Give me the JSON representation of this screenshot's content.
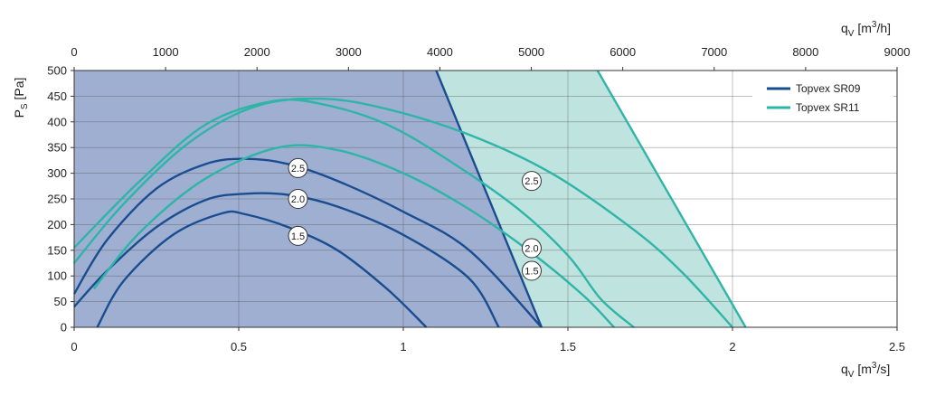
{
  "chart_data": {
    "type": "line",
    "x_bottom": {
      "label_main": "q",
      "label_sub": "V",
      "label_unit_a": " [m",
      "label_sup": "3",
      "label_unit_b": "/s]",
      "min": 0,
      "max": 2.5,
      "ticks": [
        0,
        0.5,
        1,
        1.5,
        2,
        2.5
      ],
      "tick_labels": [
        "0",
        "0.5",
        "1",
        "1.5",
        "2",
        "2.5"
      ]
    },
    "x_top": {
      "label_main": "q",
      "label_sub": "V",
      "label_unit_a": " [m",
      "label_sup": "3",
      "label_unit_b": "/h]",
      "min": 0,
      "max": 9000,
      "ticks": [
        0,
        1000,
        2000,
        3000,
        4000,
        5000,
        6000,
        7000,
        8000,
        9000
      ],
      "tick_labels": [
        "0",
        "1000",
        "2000",
        "3000",
        "4000",
        "5000",
        "6000",
        "7000",
        "8000",
        "9000"
      ]
    },
    "y": {
      "label_main": "P",
      "label_sub": "S",
      "label_unit": " [Pa]",
      "min": 0,
      "max": 500,
      "ticks": [
        0,
        50,
        100,
        150,
        200,
        250,
        300,
        350,
        400,
        450,
        500
      ],
      "tick_labels": [
        "0",
        "50",
        "100",
        "150",
        "200",
        "250",
        "300",
        "350",
        "400",
        "450",
        "500"
      ]
    },
    "grid": true,
    "legend_position": "top-right",
    "regions": [
      {
        "series": "Topvex SR11",
        "color": "#bfe3df",
        "boundary": [
          [
            0,
            0
          ],
          [
            0,
            500
          ],
          [
            1.59,
            500
          ],
          [
            2.04,
            0
          ]
        ]
      },
      {
        "series": "Topvex SR09",
        "color": "#9fafd2",
        "boundary": [
          [
            0,
            0
          ],
          [
            0,
            500
          ],
          [
            1.1,
            500
          ],
          [
            1.42,
            0
          ]
        ]
      }
    ],
    "series": [
      {
        "name": "Topvex SR09",
        "color": "#1a4d8f",
        "curves": [
          {
            "badge": "2.5",
            "points": [
              [
                0,
                65
              ],
              [
                0.1,
                170
              ],
              [
                0.25,
                270
              ],
              [
                0.4,
                318
              ],
              [
                0.52,
                328
              ],
              [
                0.65,
                318
              ],
              [
                0.8,
                285
              ],
              [
                1.0,
                225
              ],
              [
                1.2,
                150
              ],
              [
                1.42,
                0
              ]
            ]
          },
          {
            "badge": "2.0",
            "points": [
              [
                0,
                40
              ],
              [
                0.1,
                110
              ],
              [
                0.25,
                195
              ],
              [
                0.4,
                248
              ],
              [
                0.52,
                260
              ],
              [
                0.65,
                258
              ],
              [
                0.8,
                235
              ],
              [
                1.0,
                180
              ],
              [
                1.2,
                95
              ],
              [
                1.29,
                0
              ]
            ]
          },
          {
            "badge": "1.5",
            "points": [
              [
                0.07,
                0
              ],
              [
                0.15,
                90
              ],
              [
                0.3,
                180
              ],
              [
                0.45,
                222
              ],
              [
                0.52,
                220
              ],
              [
                0.65,
                195
              ],
              [
                0.8,
                150
              ],
              [
                0.95,
                75
              ],
              [
                1.07,
                0
              ]
            ]
          }
        ],
        "boundary_line": [
          [
            1.1,
            500
          ],
          [
            1.42,
            0
          ]
        ]
      },
      {
        "name": "Topvex SR11",
        "color": "#2eb5a8",
        "curves": [
          {
            "badge": "2.5",
            "points": [
              [
                0,
                125
              ],
              [
                0.15,
                240
              ],
              [
                0.35,
                360
              ],
              [
                0.55,
                430
              ],
              [
                0.75,
                445
              ],
              [
                0.95,
                425
              ],
              [
                1.2,
                375
              ],
              [
                1.45,
                300
              ],
              [
                1.7,
                190
              ],
              [
                1.85,
                105
              ],
              [
                2.0,
                0
              ]
            ]
          },
          {
            "badge": "2.0",
            "points": [
              [
                0,
                155
              ],
              [
                0.2,
                285
              ],
              [
                0.4,
                395
              ],
              [
                0.6,
                440
              ],
              [
                0.75,
                435
              ],
              [
                0.95,
                395
              ],
              [
                1.15,
                320
              ],
              [
                1.35,
                230
              ],
              [
                1.5,
                140
              ],
              [
                1.6,
                55
              ],
              [
                1.7,
                0
              ]
            ]
          },
          {
            "badge": "1.5",
            "points": [
              [
                0.06,
                75
              ],
              [
                0.2,
                185
              ],
              [
                0.4,
                290
              ],
              [
                0.62,
                350
              ],
              [
                0.8,
                345
              ],
              [
                1.0,
                300
              ],
              [
                1.2,
                230
              ],
              [
                1.4,
                140
              ],
              [
                1.55,
                60
              ],
              [
                1.64,
                0
              ]
            ]
          }
        ],
        "boundary_line": [
          [
            1.59,
            500
          ],
          [
            2.04,
            0
          ]
        ]
      }
    ],
    "badges": [
      {
        "text": "2.5",
        "x": 0.68,
        "y": 310
      },
      {
        "text": "2.0",
        "x": 0.68,
        "y": 250
      },
      {
        "text": "1.5",
        "x": 0.68,
        "y": 178
      },
      {
        "text": "2.5",
        "x": 1.39,
        "y": 285
      },
      {
        "text": "2.0",
        "x": 1.39,
        "y": 154
      },
      {
        "text": "1.5",
        "x": 1.39,
        "y": 110
      }
    ]
  }
}
